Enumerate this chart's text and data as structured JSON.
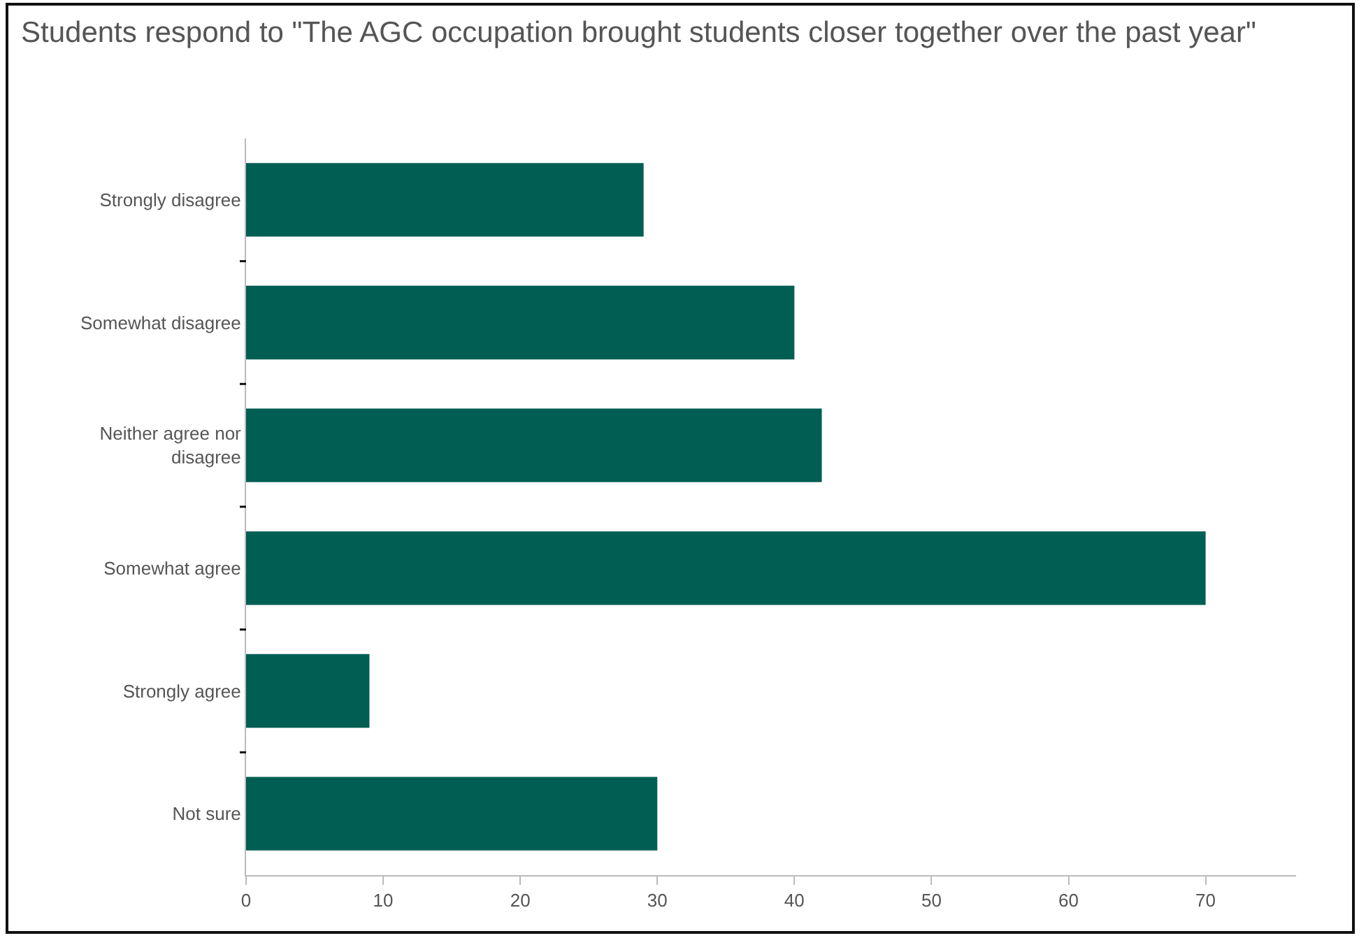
{
  "chart_data": {
    "type": "bar",
    "orientation": "horizontal",
    "title": "Students respond to \"The AGC occupation brought students closer together over the past year\"",
    "categories": [
      "Strongly disagree",
      "Somewhat disagree",
      "Neither agree nor disagree",
      "Somewhat agree",
      "Strongly agree",
      "Not sure"
    ],
    "values": [
      29,
      40,
      42,
      70,
      9,
      30
    ],
    "color": "#005e53",
    "xlim": [
      0,
      76.6
    ],
    "xticks": [
      0,
      10,
      20,
      30,
      40,
      50,
      60,
      70
    ],
    "grid": false
  }
}
